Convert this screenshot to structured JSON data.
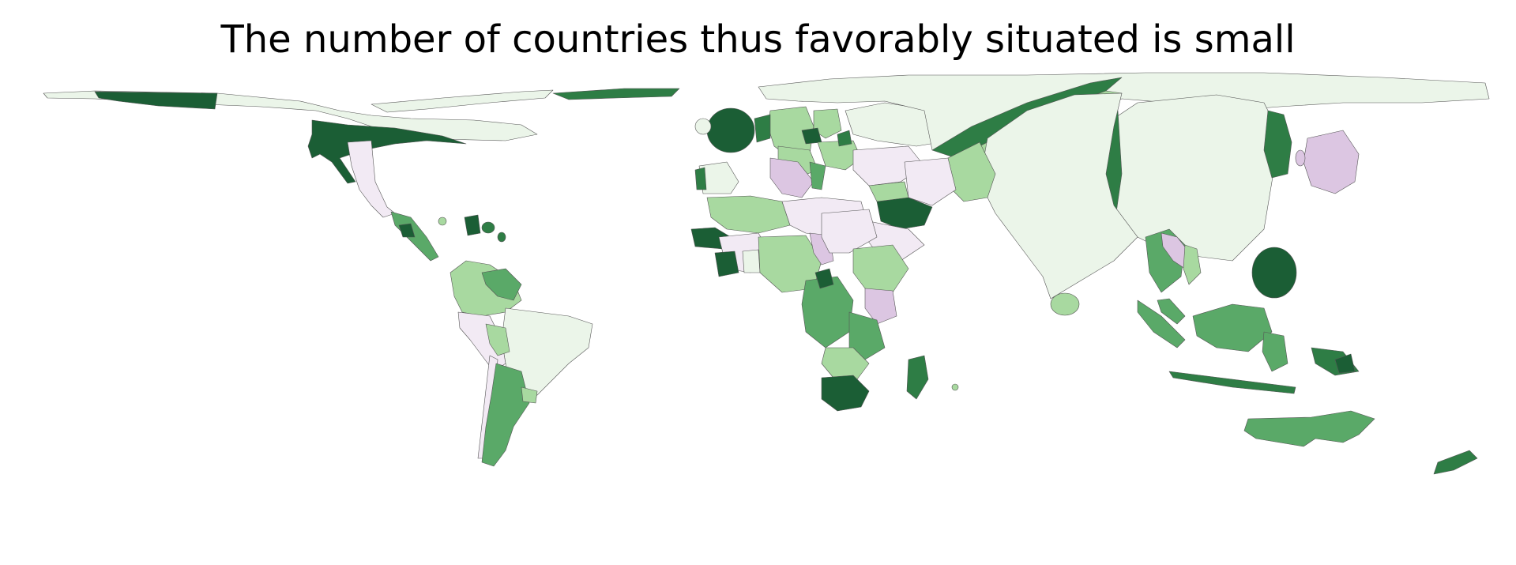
{
  "title": "The number of countries thus favorably situated is small",
  "palette": {
    "dark_green": "#1b5e35",
    "mid_dark_green": "#2e7d45",
    "mid_green": "#5aa968",
    "light_green": "#a8d9a0",
    "pale_green": "#ebf5e9",
    "pale_purple": "#f2eaf4",
    "light_purple": "#dcc6e2",
    "background": "#ffffff"
  }
}
